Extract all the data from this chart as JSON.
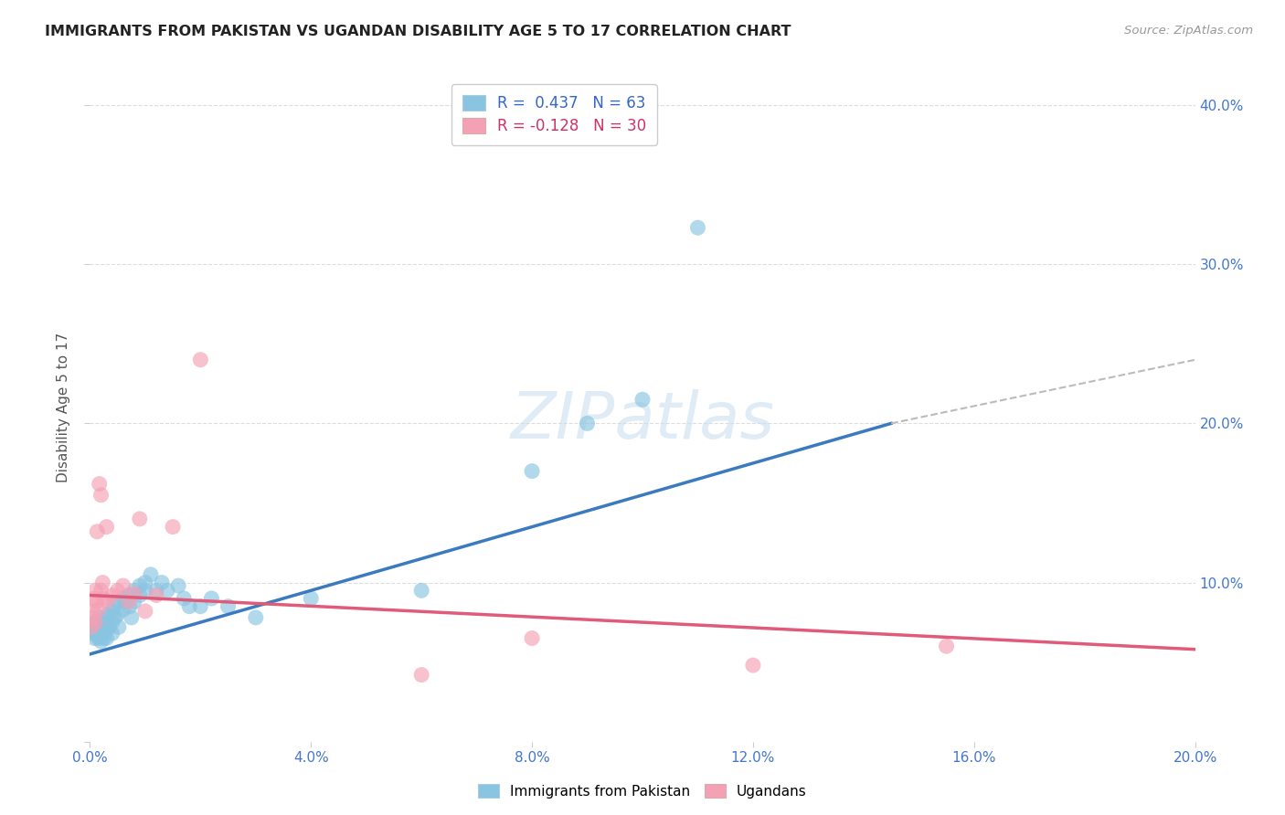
{
  "title": "IMMIGRANTS FROM PAKISTAN VS UGANDAN DISABILITY AGE 5 TO 17 CORRELATION CHART",
  "source": "Source: ZipAtlas.com",
  "ylabel": "Disability Age 5 to 17",
  "xlim": [
    0.0,
    0.2
  ],
  "ylim": [
    0.0,
    0.42
  ],
  "xticks": [
    0.0,
    0.04,
    0.08,
    0.12,
    0.16,
    0.2
  ],
  "yticks": [
    0.0,
    0.1,
    0.2,
    0.3,
    0.4
  ],
  "ytick_labels": [
    "",
    "10.0%",
    "20.0%",
    "30.0%",
    "40.0%"
  ],
  "xtick_labels": [
    "0.0%",
    "4.0%",
    "8.0%",
    "12.0%",
    "16.0%",
    "20.0%"
  ],
  "blue_color": "#89c4e1",
  "pink_color": "#f4a0b5",
  "blue_line_color": "#3a7abf",
  "pink_line_color": "#e05a7a",
  "dashed_line_color": "#bbbbbb",
  "legend_blue_label": "R =  0.437   N = 63",
  "legend_pink_label": "R = -0.128   N = 30",
  "blue_line_x0": 0.0,
  "blue_line_y0": 0.055,
  "blue_line_x1": 0.145,
  "blue_line_y1": 0.2,
  "dash_line_x0": 0.145,
  "dash_line_y0": 0.2,
  "dash_line_x1": 0.2,
  "dash_line_y1": 0.24,
  "pink_line_x0": 0.0,
  "pink_line_y0": 0.092,
  "pink_line_x1": 0.2,
  "pink_line_y1": 0.058,
  "blue_scatter_x": [
    0.0005,
    0.0007,
    0.0008,
    0.001,
    0.001,
    0.0012,
    0.0013,
    0.0015,
    0.0015,
    0.0016,
    0.0017,
    0.0018,
    0.0019,
    0.002,
    0.002,
    0.002,
    0.0022,
    0.0023,
    0.0025,
    0.0025,
    0.003,
    0.003,
    0.003,
    0.0032,
    0.0033,
    0.0035,
    0.004,
    0.004,
    0.004,
    0.0043,
    0.0045,
    0.005,
    0.005,
    0.0052,
    0.006,
    0.006,
    0.0065,
    0.007,
    0.0072,
    0.0075,
    0.008,
    0.008,
    0.009,
    0.009,
    0.01,
    0.01,
    0.011,
    0.012,
    0.013,
    0.014,
    0.016,
    0.017,
    0.018,
    0.02,
    0.022,
    0.025,
    0.03,
    0.04,
    0.06,
    0.08,
    0.09,
    0.1,
    0.11
  ],
  "blue_scatter_y": [
    0.068,
    0.072,
    0.065,
    0.07,
    0.075,
    0.068,
    0.075,
    0.072,
    0.065,
    0.078,
    0.07,
    0.074,
    0.068,
    0.073,
    0.068,
    0.063,
    0.07,
    0.075,
    0.072,
    0.065,
    0.078,
    0.07,
    0.065,
    0.08,
    0.074,
    0.072,
    0.082,
    0.075,
    0.068,
    0.085,
    0.078,
    0.088,
    0.08,
    0.072,
    0.09,
    0.083,
    0.088,
    0.092,
    0.085,
    0.078,
    0.095,
    0.088,
    0.098,
    0.092,
    0.1,
    0.095,
    0.105,
    0.095,
    0.1,
    0.095,
    0.098,
    0.09,
    0.085,
    0.085,
    0.09,
    0.085,
    0.078,
    0.09,
    0.095,
    0.17,
    0.2,
    0.215,
    0.323
  ],
  "pink_scatter_x": [
    0.0003,
    0.0005,
    0.0007,
    0.0008,
    0.001,
    0.001,
    0.0012,
    0.0013,
    0.0015,
    0.0017,
    0.002,
    0.002,
    0.0023,
    0.0025,
    0.003,
    0.003,
    0.004,
    0.005,
    0.006,
    0.007,
    0.008,
    0.009,
    0.01,
    0.012,
    0.015,
    0.02,
    0.06,
    0.08,
    0.12,
    0.155
  ],
  "pink_scatter_y": [
    0.072,
    0.078,
    0.082,
    0.09,
    0.075,
    0.095,
    0.088,
    0.132,
    0.083,
    0.162,
    0.155,
    0.095,
    0.1,
    0.09,
    0.135,
    0.088,
    0.092,
    0.095,
    0.098,
    0.088,
    0.093,
    0.14,
    0.082,
    0.092,
    0.135,
    0.24,
    0.042,
    0.065,
    0.048,
    0.06
  ],
  "watermark_text": "ZIPatlas",
  "bottom_legend_labels": [
    "Immigrants from Pakistan",
    "Ugandans"
  ],
  "background_color": "#ffffff",
  "grid_color": "#dddddd"
}
